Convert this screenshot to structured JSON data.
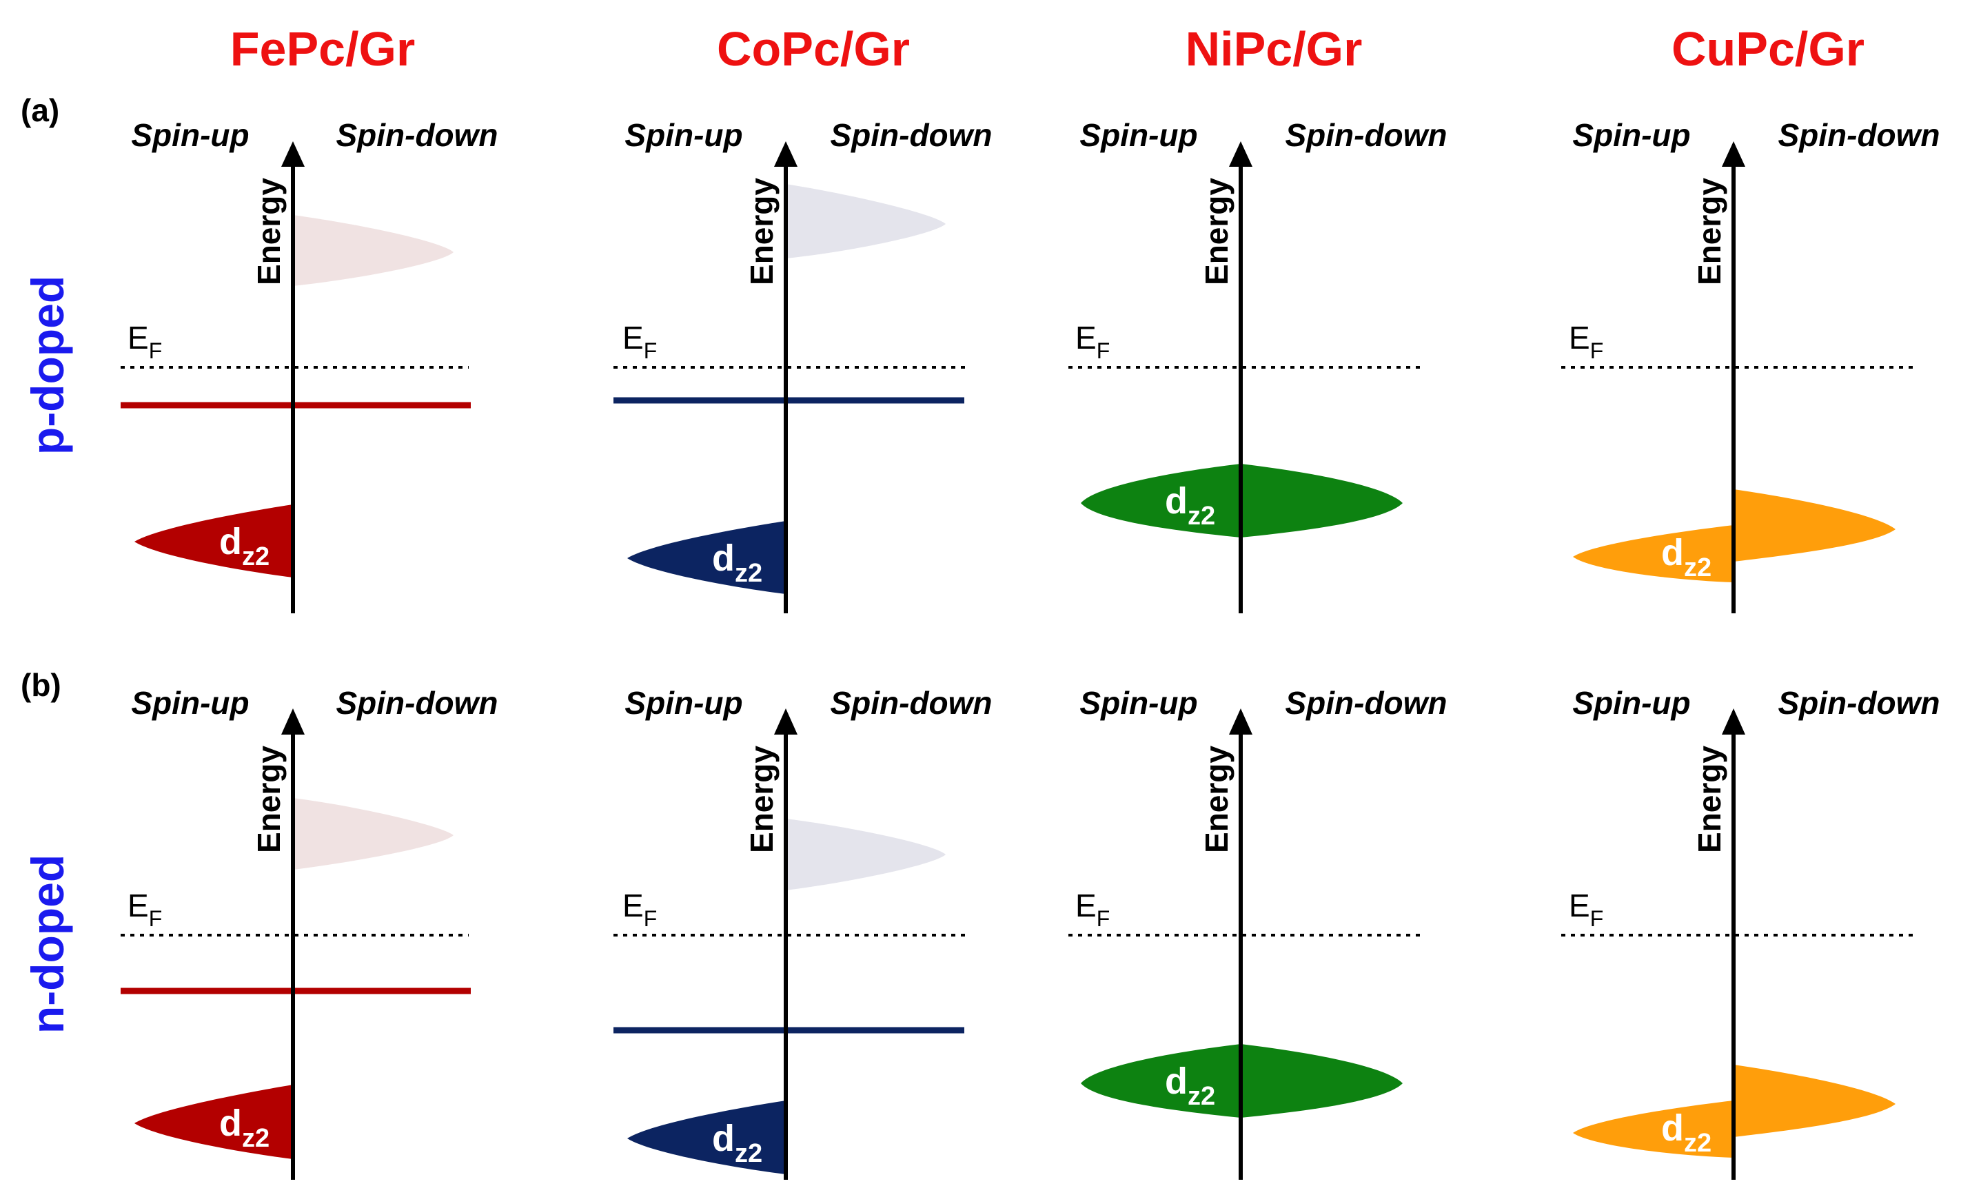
{
  "columns": [
    {
      "title": "FePc/Gr",
      "color": "#ee1111",
      "band_color": "#b30000",
      "unocc_color": "#f0e2e2",
      "style": "spin-up-only"
    },
    {
      "title": "CoPc/Gr",
      "color": "#ee1111",
      "band_color": "#0c2461",
      "unocc_color": "#e4e4ec",
      "style": "spin-up-only"
    },
    {
      "title": "NiPc/Gr",
      "color": "#ee1111",
      "band_color": "#0d8211",
      "unocc_color": null,
      "style": "symmetric"
    },
    {
      "title": "CuPc/Gr",
      "color": "#ee1111",
      "band_color": "#ff9e0b",
      "unocc_color": null,
      "style": "asymmetric"
    }
  ],
  "rows": [
    {
      "panel_label": "(a)",
      "side_label": "p-doped",
      "side_color": "#1a1aee"
    },
    {
      "panel_label": "(b)",
      "side_label": "n-doped",
      "side_color": "#1a1aee"
    }
  ],
  "labels": {
    "spin_up": "Spin-up",
    "spin_down": "Spin-down",
    "energy": "Energy",
    "fermi_main": "E",
    "fermi_sub": "F",
    "orbital_main": "d",
    "orbital_sub": "z2"
  }
}
